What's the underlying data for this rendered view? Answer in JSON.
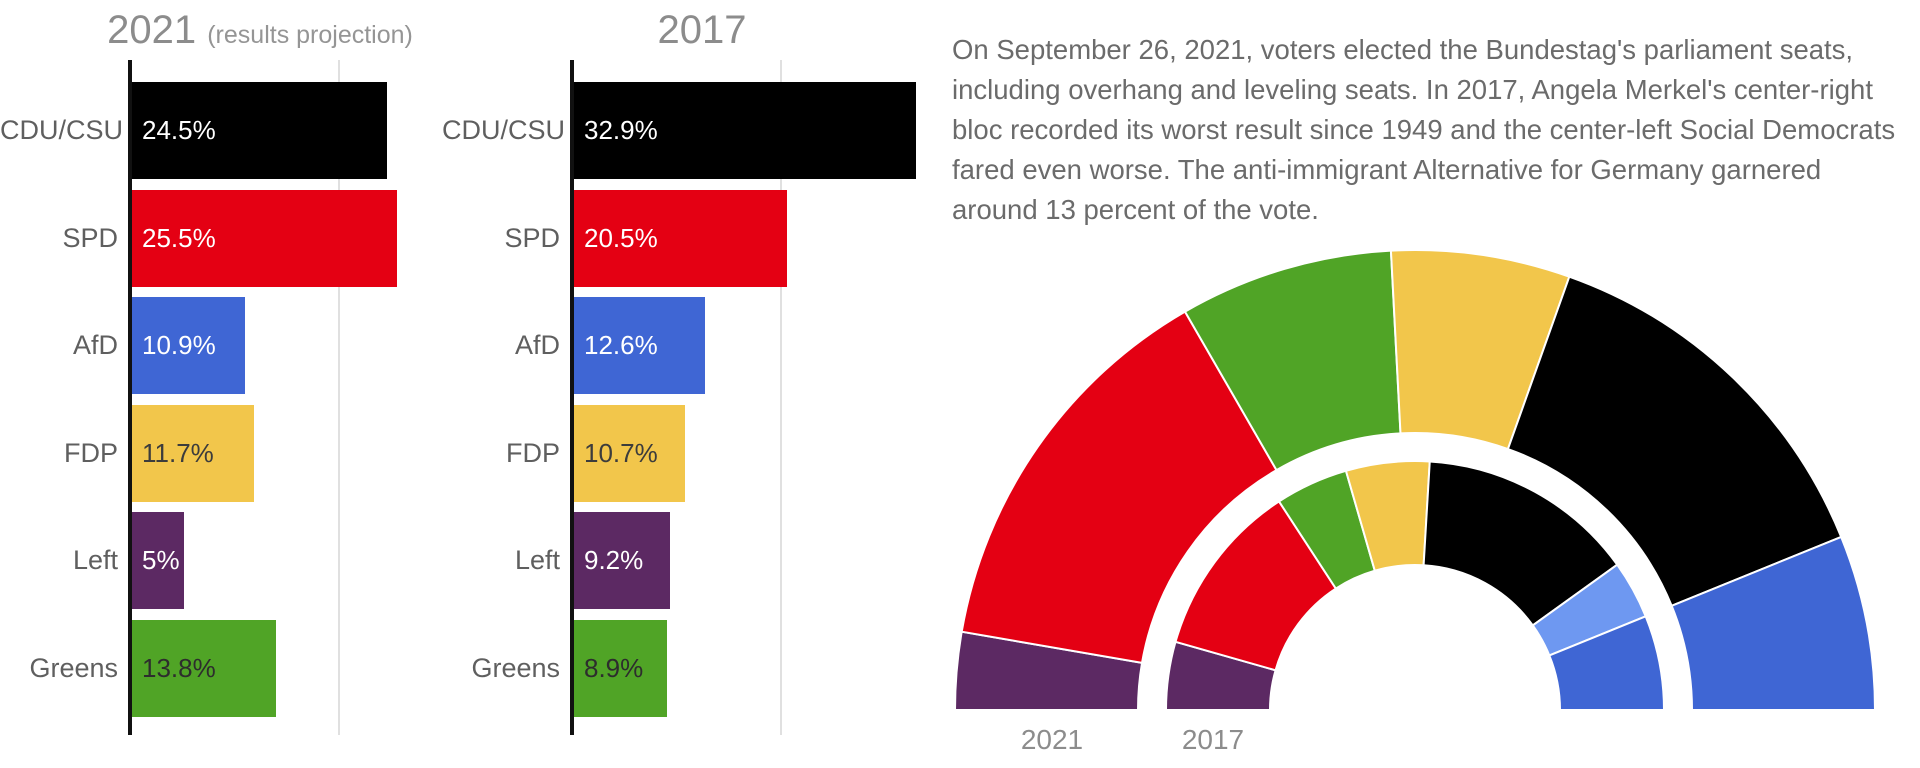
{
  "paragraph": "On September 26, 2021, voters elected the Bundestag's parliament seats, including overhang and leveling seats. In 2017, Angela Merkel's center-right bloc recorded its worst result since 1949 and the center-left Social Democrats fared even worse. The anti-immigrant Alternative for Germany garnered around 13 percent of the vote.",
  "colors": {
    "cdu_csu": "#000000",
    "spd": "#e40013",
    "afd": "#3f66d4",
    "fdp": "#f2c64b",
    "left": "#5c2963",
    "greens": "#50a426",
    "csu_light_blue": "#6e98f1",
    "title_gray": "#8c8c8c",
    "label_gray": "#5f5f5f",
    "gridline": "#e0e0e0"
  },
  "chart_data": [
    {
      "type": "bar",
      "orientation": "horizontal",
      "title": "2021",
      "subtitle": "(results projection)",
      "categories": [
        "CDU/CSU",
        "SPD",
        "AfD",
        "FDP",
        "Left",
        "Greens"
      ],
      "values": [
        24.5,
        25.5,
        10.9,
        11.7,
        5,
        13.8
      ],
      "value_labels": [
        "24.5%",
        "25.5%",
        "10.9%",
        "11.7%",
        "5%",
        "13.8%"
      ],
      "unit": "percent of vote",
      "xlim": [
        0,
        35
      ],
      "gridlines_pct": [
        20
      ],
      "bar_colors": [
        "#000000",
        "#e40013",
        "#3f66d4",
        "#f2c64b",
        "#5c2963",
        "#50a426"
      ],
      "value_text_colors": [
        "#ffffff",
        "#ffffff",
        "#ffffff",
        "#3c3c3c",
        "#ffffff",
        "#2d2d2d"
      ]
    },
    {
      "type": "bar",
      "orientation": "horizontal",
      "title": "2017",
      "subtitle": "",
      "categories": [
        "CDU/CSU",
        "SPD",
        "AfD",
        "FDP",
        "Left",
        "Greens"
      ],
      "values": [
        32.9,
        20.5,
        12.6,
        10.7,
        9.2,
        8.9
      ],
      "value_labels": [
        "32.9%",
        "20.5%",
        "12.6%",
        "10.7%",
        "9.2%",
        "8.9%"
      ],
      "unit": "percent of vote",
      "xlim": [
        0,
        35
      ],
      "gridlines_pct": [
        20
      ],
      "bar_colors": [
        "#000000",
        "#e40013",
        "#3f66d4",
        "#f2c64b",
        "#5c2963",
        "#50a426"
      ],
      "value_text_colors": [
        "#ffffff",
        "#ffffff",
        "#ffffff",
        "#3c3c3c",
        "#ffffff",
        "#2d2d2d"
      ]
    },
    {
      "type": "pie",
      "subtype": "hemicycle-donut",
      "description": "Bundestag seat distribution, two half-ring arcs (no printed values; angular shares estimated from pixels, in degrees of 180)",
      "rings": [
        {
          "label": "2021",
          "position": "outer",
          "segments": [
            {
              "party": "Left",
              "color": "#5c2963",
              "degrees": 9.8
            },
            {
              "party": "SPD",
              "color": "#e40013",
              "degrees": 50.2
            },
            {
              "party": "Greens",
              "color": "#50a426",
              "degrees": 27.0
            },
            {
              "party": "FDP",
              "color": "#f2c64b",
              "degrees": 22.6
            },
            {
              "party": "CDU/CSU",
              "color": "#000000",
              "degrees": 48.3
            },
            {
              "party": "AfD",
              "color": "#3f66d4",
              "degrees": 22.1
            }
          ]
        },
        {
          "label": "2017",
          "position": "inner",
          "segments": [
            {
              "party": "Left",
              "color": "#5c2963",
              "degrees": 15.9
            },
            {
              "party": "SPD",
              "color": "#e40013",
              "degrees": 41.0
            },
            {
              "party": "Greens",
              "color": "#50a426",
              "degrees": 17.0
            },
            {
              "party": "FDP",
              "color": "#f2c64b",
              "degrees": 19.5
            },
            {
              "party": "CDU",
              "color": "#000000",
              "degrees": 50.9
            },
            {
              "party": "CSU",
              "color": "#6e98f1",
              "degrees": 13.6
            },
            {
              "party": "AfD",
              "color": "#3f66d4",
              "degrees": 22.1
            }
          ]
        }
      ]
    }
  ]
}
